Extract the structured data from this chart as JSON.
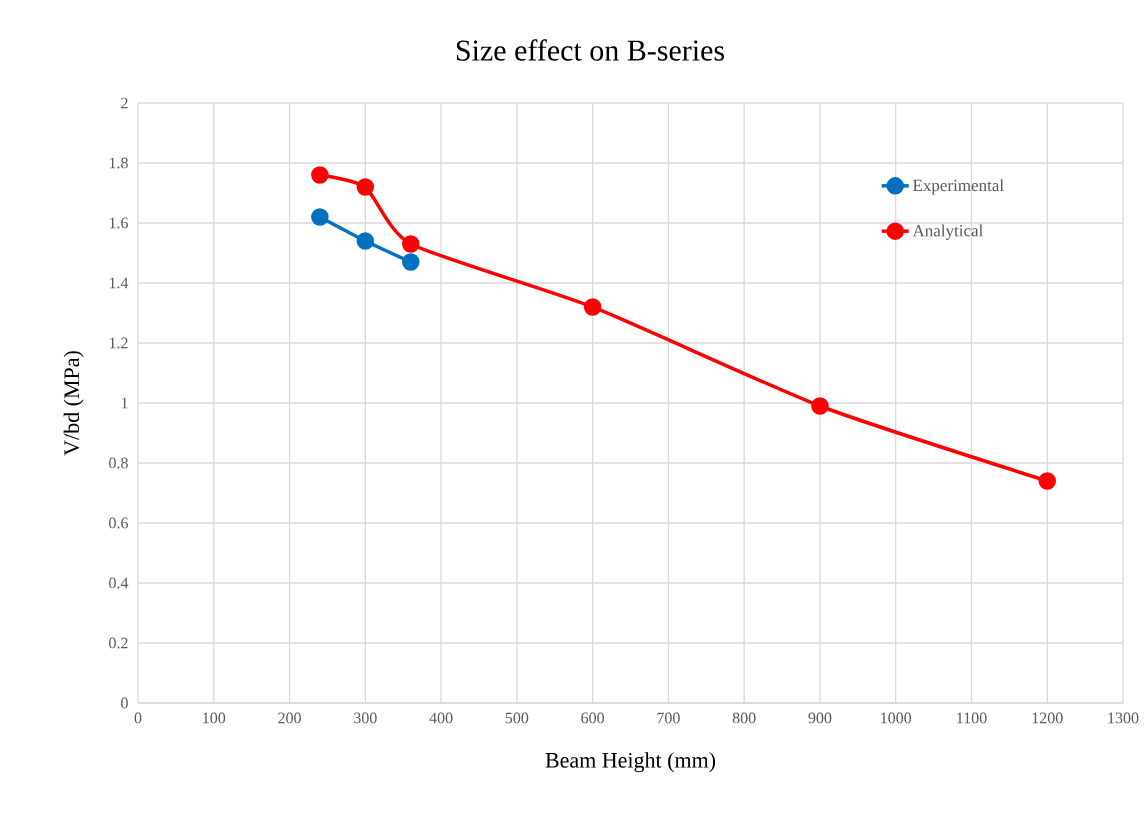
{
  "chart_data": {
    "type": "line",
    "title": "Size effect on B-series",
    "xlabel": "Beam Height  (mm)",
    "ylabel": "V/bd (MPa)",
    "series": [
      {
        "name": "Experimental",
        "color": "#0070c0",
        "x": [
          240,
          300,
          360
        ],
        "values": [
          1.62,
          1.54,
          1.47
        ]
      },
      {
        "name": "Analytical",
        "color": "#ff0000",
        "x": [
          240,
          300,
          360,
          600,
          900,
          1200
        ],
        "values": [
          1.76,
          1.72,
          1.53,
          1.32,
          0.99,
          0.74
        ]
      }
    ],
    "xlim": [
      0,
      1300
    ],
    "xticks": [
      0,
      100,
      200,
      300,
      400,
      500,
      600,
      700,
      800,
      900,
      1000,
      1100,
      1200,
      1300
    ],
    "ylim": [
      0,
      2
    ],
    "yticks": [
      0,
      0.2,
      0.4,
      0.6,
      0.8,
      1,
      1.2,
      1.4,
      1.6,
      1.8,
      2
    ],
    "grid": true,
    "legend": "top right",
    "marker": "circle",
    "line_style": "solid"
  }
}
